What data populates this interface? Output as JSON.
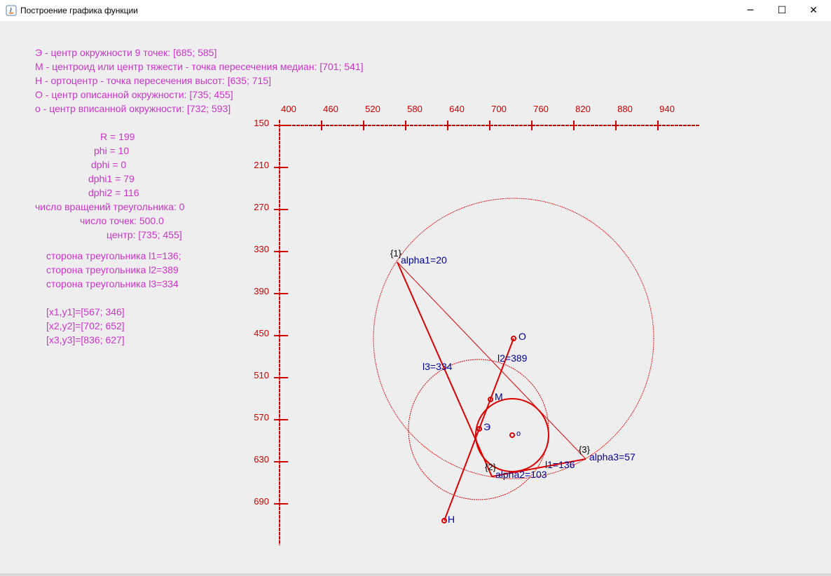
{
  "window": {
    "title": "Построение графика функции",
    "minimize": "─",
    "maximize": "☐",
    "close": "✕"
  },
  "info": {
    "e_center": "Э - центр окружности 9 точек: [685; 585]",
    "m_centroid": "М - центроид или центр тяжести - точка пересечения медиан: [701; 541]",
    "h_ortho": "Н - ортоцентр - точка пересечения высот: [635; 715]",
    "o_circum": "О -  центр описанной окружности: [735; 455]",
    "o_incenter": "о - центр вписанной окружности: [732; 593]",
    "R": "R = 199",
    "phi": "phi = 10",
    "dphi": "dphi = 0",
    "dphi1": "dphi1 = 79",
    "dphi2": "dphi2 = 116",
    "rotations": "число вращений треугольника: 0",
    "points": "число точек: 500.0",
    "center": "центр: [735; 455]",
    "side1": "сторона  треугольника l1=136;",
    "side2": "сторона  треугольника l2=389",
    "side3": "сторона  треугольника l3=334",
    "p1": "[x1,y1]=[567; 346]",
    "p2": "[x2,y2]=[702; 652]",
    "p3": "[x3,y3]=[836; 627]"
  },
  "axes": {
    "x_ticks": [
      "400",
      "460",
      "520",
      "580",
      "640",
      "700",
      "760",
      "820",
      "880",
      "940"
    ],
    "y_ticks": [
      "150",
      "210",
      "270",
      "330",
      "390",
      "450",
      "510",
      "570",
      "630",
      "690"
    ]
  },
  "labels": {
    "v1": "{1}",
    "v2": "{2}",
    "v3": "{3}",
    "alpha1": "alpha1=20",
    "alpha2": "alpha2=103",
    "alpha3": "alpha3=57",
    "l1": "l1=136",
    "l2": "l2=389",
    "l3": "l3=334",
    "O": "O",
    "M": "M",
    "E": "Э",
    "H": "H",
    "o": "o"
  },
  "colors": {
    "info_text": "#cc33cc",
    "axis": "#cc0000",
    "geometry": "#dd0000",
    "label_blue": "#000099"
  },
  "geometry": {
    "vertices": [
      [
        567,
        346
      ],
      [
        702,
        652
      ],
      [
        836,
        627
      ]
    ],
    "circumcenter": [
      735,
      455
    ],
    "circumradius": 199,
    "nine_point_center": [
      685,
      585
    ],
    "centroid": [
      701,
      541
    ],
    "orthocenter": [
      635,
      715
    ],
    "incenter": [
      732,
      593
    ]
  }
}
